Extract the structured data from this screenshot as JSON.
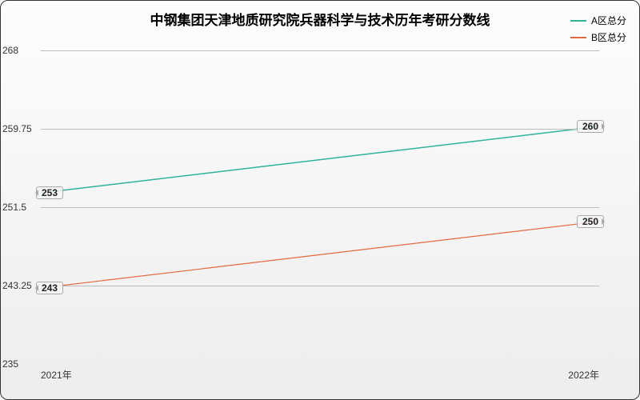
{
  "chart": {
    "type": "line",
    "title": "中钢集团天津地质研究院兵器科学与技术历年考研分数线",
    "title_fontsize": 17,
    "background_gradient": [
      "#fdfdfd",
      "#ededed"
    ],
    "border_color": "#333333",
    "grid_color": "#bbbbbb",
    "text_color": "#333333",
    "ylim": [
      235,
      268
    ],
    "yticks": [
      235,
      243.25,
      251.5,
      259.75,
      268
    ],
    "ytick_labels": [
      "235",
      "243.25",
      "251.5",
      "259.75",
      "268"
    ],
    "x_categories": [
      "2021年",
      "2022年"
    ],
    "series": [
      {
        "name": "A区总分",
        "color": "#2fb39a",
        "line_width": 1.5,
        "values": [
          253,
          260
        ],
        "value_labels": [
          "253",
          "260"
        ]
      },
      {
        "name": "B区总分",
        "color": "#e46a3e",
        "line_width": 1.2,
        "values": [
          243,
          250
        ],
        "value_labels": [
          "243",
          "250"
        ]
      }
    ],
    "label_fontsize": 12,
    "legend_fontsize": 12
  }
}
